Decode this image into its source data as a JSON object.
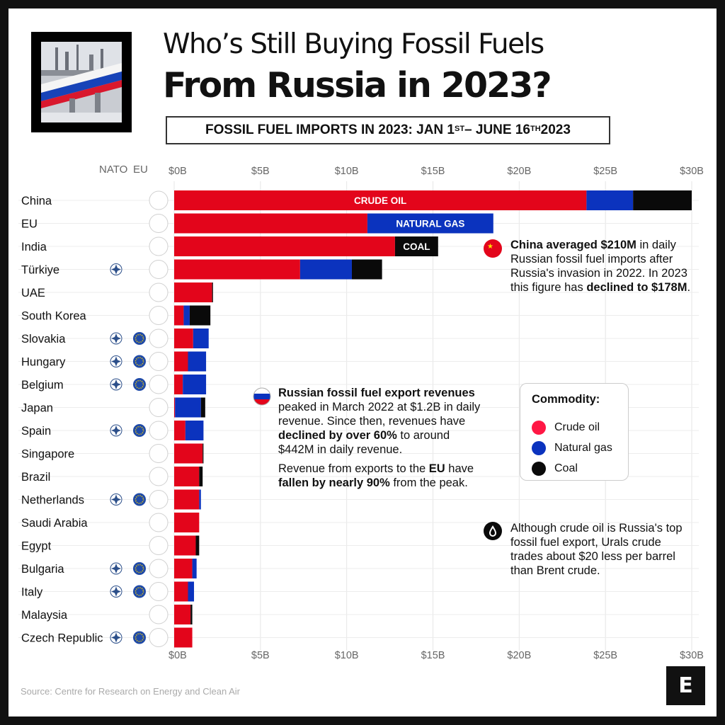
{
  "header": {
    "title_line1": "Who’s Still Buying Fossil Fuels",
    "title_line2": "From Russia in 2023?",
    "subtitle_part1": "FOSSIL FUEL IMPORTS IN 2023: JAN 1",
    "subtitle_sup1": "ST",
    "subtitle_part2": " – JUNE 16",
    "subtitle_sup2": "TH",
    "subtitle_part3": " 2023"
  },
  "columns": {
    "nato": "NATO",
    "eu": "EU"
  },
  "colors": {
    "crude_oil": "#e3051b",
    "natural_gas": "#0b33be",
    "coal": "#0a0a0a",
    "accent": "#ff1744"
  },
  "chart_data": {
    "type": "bar",
    "orientation": "horizontal",
    "stacked": true,
    "xlim": [
      0,
      30
    ],
    "x_ticks": [
      "$0B",
      "$5B",
      "$10B",
      "$15B",
      "$20B",
      "$25B",
      "$30B"
    ],
    "categories": [
      "China",
      "EU",
      "India",
      "Türkiye",
      "UAE",
      "South Korea",
      "Slovakia",
      "Hungary",
      "Belgium",
      "Japan",
      "Spain",
      "Singapore",
      "Brazil",
      "Netherlands",
      "Saudi Arabia",
      "Egypt",
      "Bulgaria",
      "Italy",
      "Malaysia",
      "Czech Republic"
    ],
    "nato": [
      false,
      false,
      false,
      true,
      false,
      false,
      true,
      true,
      true,
      false,
      true,
      false,
      false,
      true,
      false,
      false,
      true,
      true,
      false,
      true
    ],
    "eu": [
      false,
      false,
      false,
      false,
      false,
      false,
      true,
      true,
      true,
      false,
      true,
      false,
      false,
      true,
      false,
      false,
      true,
      true,
      false,
      true
    ],
    "series": [
      {
        "name": "Crude oil",
        "values": [
          23.9,
          11.2,
          12.8,
          7.3,
          2.2,
          0.55,
          1.1,
          0.8,
          0.5,
          0.05,
          0.65,
          1.65,
          1.45,
          1.45,
          1.45,
          1.25,
          1.05,
          0.8,
          0.95,
          1.05
        ]
      },
      {
        "name": "Natural gas",
        "values": [
          2.7,
          7.3,
          0,
          3.0,
          0,
          0.35,
          0.9,
          1.05,
          1.35,
          1.5,
          1.05,
          0,
          0,
          0.1,
          0,
          0,
          0.25,
          0.35,
          0,
          0
        ]
      },
      {
        "name": "Coal",
        "values": [
          3.4,
          0,
          2.5,
          1.75,
          0.05,
          1.2,
          0,
          0,
          0,
          0.25,
          0,
          0.05,
          0.2,
          0,
          0,
          0.2,
          0,
          0,
          0.1,
          0
        ]
      }
    ],
    "segment_labels": [
      {
        "text": "CRUDE OIL",
        "row": 0,
        "series": 0
      },
      {
        "text": "NATURAL GAS",
        "row": 1,
        "series": 1
      },
      {
        "text": "COAL",
        "row": 2,
        "series": 2
      }
    ]
  },
  "annotations": {
    "china": {
      "b1": "China averaged $210M",
      "t1": " in daily Russian fossil fuel imports after Russia's invasion in 2022. In 2023 this figure has ",
      "b2": "declined to $178M",
      "t2": "."
    },
    "russia1": {
      "b1": "Russian fossil fuel export revenues",
      "t1": " peaked in March 2022 at $1.2B in daily revenue. Since then, revenues have ",
      "b2": "declined by over 60%",
      "t2": " to around $442M in daily revenue."
    },
    "russia2": {
      "t1": "Revenue from exports to the ",
      "b1": "EU",
      "t2": " have ",
      "b2": "fallen by nearly 90%",
      "t3": " from the peak."
    },
    "crude": {
      "t1": "Although crude oil is Russia's top fossil fuel export, Urals crude trades about $20 less per barrel than Brent crude."
    }
  },
  "legend": {
    "title": "Commodity:",
    "items": [
      {
        "label": "Crude oil",
        "color": "#ff1744"
      },
      {
        "label": "Natural gas",
        "color": "#0b33be"
      },
      {
        "label": "Coal",
        "color": "#0a0a0a"
      }
    ]
  },
  "footer": {
    "source": "Source: Centre for Research on Energy and Clean Air",
    "logo": "E"
  }
}
